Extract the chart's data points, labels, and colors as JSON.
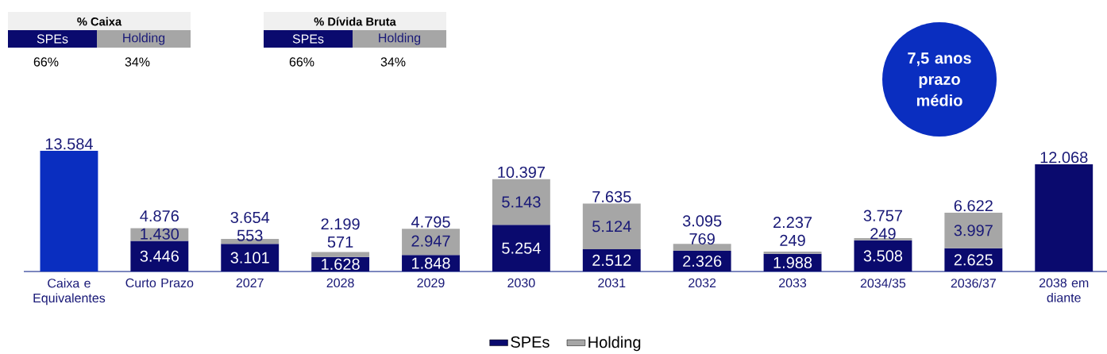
{
  "chart_data": {
    "type": "bar",
    "stacked": true,
    "categories": [
      "Caixa e Equivalentes",
      "Curto Prazo",
      "2027",
      "2028",
      "2029",
      "2030",
      "2031",
      "2032",
      "2033",
      "2034/35",
      "2036/37",
      "2038 em diante"
    ],
    "series": [
      {
        "name": "SPEs",
        "color": "#0a0a6e",
        "colors": [
          "#0a2ec0",
          "#0a0a6e",
          "#0a0a6e",
          "#0a0a6e",
          "#0a0a6e",
          "#0a0a6e",
          "#0a0a6e",
          "#0a0a6e",
          "#0a0a6e",
          "#0a0a6e",
          "#0a0a6e",
          "#0a0a6e"
        ],
        "values": [
          13584,
          3446,
          3101,
          1628,
          1848,
          5254,
          2512,
          2326,
          1988,
          3508,
          2625,
          12068
        ],
        "value_labels": [
          null,
          "3.446",
          "3.101",
          "1.628",
          "1.848",
          "5.254",
          "2.512",
          "2.326",
          "1.988",
          "3.508",
          "2.625",
          null
        ]
      },
      {
        "name": "Holding",
        "color": "#a6a6a6",
        "values": [
          null,
          1430,
          553,
          571,
          2947,
          5143,
          5124,
          769,
          249,
          249,
          3997,
          null
        ],
        "value_labels": [
          null,
          "1.430",
          "553",
          "571",
          "2.947",
          "5.143",
          "5.124",
          "769",
          "249",
          "249",
          "3.997",
          null
        ]
      }
    ],
    "totals": [
      "13.584",
      "4.876",
      "3.654",
      "2.199",
      "4.795",
      "10.397",
      "7.635",
      "3.095",
      "2.237",
      "3.757",
      "6.622",
      "12.068"
    ],
    "legend": "bottom",
    "annotations": [
      "% Caixa",
      "SPEs",
      "Holding",
      "66%",
      "34%",
      "% Dívida Bruta",
      "SPEs",
      "Holding",
      "66%",
      "34%",
      "7,5 anos prazo médio"
    ]
  }
}
